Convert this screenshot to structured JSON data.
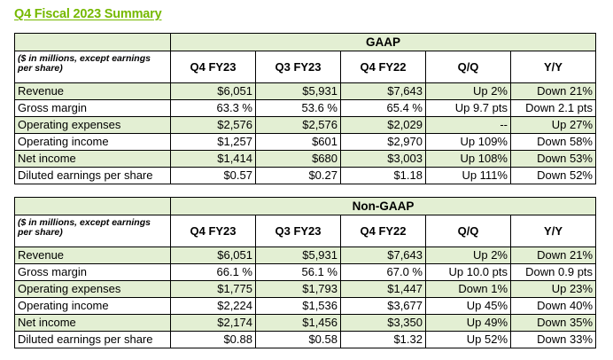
{
  "page_title": "Q4 Fiscal 2023 Summary",
  "unit_note": "($ in millions, except earnings per share)",
  "columns": [
    "Q4 FY23",
    "Q3 FY23",
    "Q4 FY22",
    "Q/Q",
    "Y/Y"
  ],
  "colors": {
    "accent_green": "#76b900",
    "row_shade": "#e3efd3"
  },
  "gaap": {
    "title": "GAAP",
    "rows": [
      {
        "metric": "Revenue",
        "q4fy23": "$6,051",
        "q3fy23": "$5,931",
        "q4fy22": "$7,643",
        "qq": "Up 2%",
        "yy": "Down 21%"
      },
      {
        "metric": "Gross margin",
        "q4fy23": "63.3 %",
        "q3fy23": "53.6 %",
        "q4fy22": "65.4 %",
        "qq": "Up 9.7 pts",
        "yy": "Down 2.1 pts"
      },
      {
        "metric": "Operating expenses",
        "q4fy23": "$2,576",
        "q3fy23": "$2,576",
        "q4fy22": "$2,029",
        "qq": "--",
        "yy": "Up 27%"
      },
      {
        "metric": "Operating income",
        "q4fy23": "$1,257",
        "q3fy23": "$601",
        "q4fy22": "$2,970",
        "qq": "Up 109%",
        "yy": "Down 58%"
      },
      {
        "metric": "Net income",
        "q4fy23": "$1,414",
        "q3fy23": "$680",
        "q4fy22": "$3,003",
        "qq": "Up 108%",
        "yy": "Down 53%"
      },
      {
        "metric": "Diluted earnings per share",
        "q4fy23": "$0.57",
        "q3fy23": "$0.27",
        "q4fy22": "$1.18",
        "qq": "Up 111%",
        "yy": "Down 52%"
      }
    ]
  },
  "non_gaap": {
    "title": "Non-GAAP",
    "rows": [
      {
        "metric": "Revenue",
        "q4fy23": "$6,051",
        "q3fy23": "$5,931",
        "q4fy22": "$7,643",
        "qq": "Up 2%",
        "yy": "Down 21%"
      },
      {
        "metric": "Gross margin",
        "q4fy23": "66.1 %",
        "q3fy23": "56.1 %",
        "q4fy22": "67.0 %",
        "qq": "Up 10.0 pts",
        "yy": "Down 0.9 pts"
      },
      {
        "metric": "Operating expenses",
        "q4fy23": "$1,775",
        "q3fy23": "$1,793",
        "q4fy22": "$1,447",
        "qq": "Down 1%",
        "yy": "Up 23%"
      },
      {
        "metric": "Operating income",
        "q4fy23": "$2,224",
        "q3fy23": "$1,536",
        "q4fy22": "$3,677",
        "qq": "Up 45%",
        "yy": "Down 40%"
      },
      {
        "metric": "Net income",
        "q4fy23": "$2,174",
        "q3fy23": "$1,456",
        "q4fy22": "$3,350",
        "qq": "Up 49%",
        "yy": "Down 35%"
      },
      {
        "metric": "Diluted earnings per share",
        "q4fy23": "$0.88",
        "q3fy23": "$0.58",
        "q4fy22": "$1.32",
        "qq": "Up 52%",
        "yy": "Down 33%"
      }
    ]
  }
}
